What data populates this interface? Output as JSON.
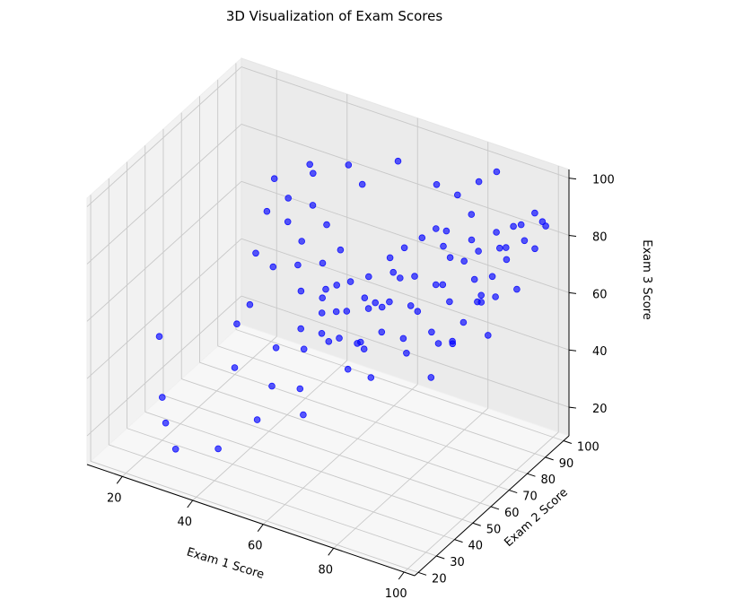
{
  "chart_data": {
    "type": "scatter",
    "title": "3D Visualization of Exam Scores",
    "xlabel": "Exam 1 Score",
    "ylabel": "Exam 2 Score",
    "zlabel": "Exam 3 Score",
    "x_ticks": [
      "20",
      "40",
      "60",
      "80",
      "100"
    ],
    "y_ticks": [
      "20",
      "30",
      "40",
      "50",
      "60",
      "70",
      "80",
      "90",
      "100"
    ],
    "z_ticks": [
      "20",
      "40",
      "60",
      "80",
      "100"
    ],
    "xlim": [
      10,
      103
    ],
    "ylim": [
      18,
      103
    ],
    "zlim": [
      10,
      103
    ],
    "grid": true,
    "marker_color": "#0000ff",
    "series": [
      {
        "points": [
          [
            14,
            50,
            38
          ],
          [
            20,
            40,
            25
          ],
          [
            22,
            38,
            18
          ],
          [
            30,
            28,
            18
          ],
          [
            32,
            65,
            48
          ],
          [
            35,
            52,
            50
          ],
          [
            38,
            45,
            40
          ],
          [
            40,
            32,
            20
          ],
          [
            42,
            60,
            40
          ],
          [
            46,
            50,
            34
          ],
          [
            48,
            62,
            48
          ],
          [
            48,
            38,
            30
          ],
          [
            50,
            70,
            55
          ],
          [
            52,
            74,
            58
          ],
          [
            52,
            56,
            46
          ],
          [
            55,
            48,
            38
          ],
          [
            56,
            66,
            55
          ],
          [
            58,
            80,
            60
          ],
          [
            58,
            58,
            50
          ],
          [
            59,
            42,
            34
          ],
          [
            60,
            76,
            52
          ],
          [
            62,
            70,
            60
          ],
          [
            62,
            84,
            66
          ],
          [
            63,
            64,
            48
          ],
          [
            64,
            88,
            68
          ],
          [
            65,
            55,
            45
          ],
          [
            66,
            78,
            66
          ],
          [
            67,
            60,
            50
          ],
          [
            68,
            72,
            60
          ],
          [
            68,
            90,
            72
          ],
          [
            69,
            66,
            62
          ],
          [
            70,
            82,
            64
          ],
          [
            71,
            56,
            44
          ],
          [
            72,
            76,
            58
          ],
          [
            73,
            92,
            70
          ],
          [
            74,
            68,
            52
          ],
          [
            75,
            84,
            62
          ],
          [
            76,
            72,
            60
          ],
          [
            77,
            88,
            70
          ],
          [
            78,
            62,
            52
          ],
          [
            79,
            80,
            66
          ],
          [
            80,
            94,
            74
          ],
          [
            81,
            70,
            56
          ],
          [
            82,
            86,
            72
          ],
          [
            83,
            76,
            64
          ],
          [
            84,
            90,
            74
          ],
          [
            85,
            66,
            56
          ],
          [
            86,
            96,
            78
          ],
          [
            87,
            82,
            70
          ],
          [
            88,
            74,
            60
          ],
          [
            89,
            92,
            76
          ],
          [
            90,
            86,
            70
          ],
          [
            91,
            78,
            66
          ],
          [
            92,
            98,
            82
          ],
          [
            93,
            88,
            76
          ],
          [
            94,
            80,
            68
          ],
          [
            95,
            94,
            80
          ],
          [
            96,
            72,
            60
          ],
          [
            97,
            100,
            84
          ],
          [
            98,
            84,
            70
          ],
          [
            99,
            92,
            80
          ],
          [
            100,
            96,
            86
          ],
          [
            86,
            60,
            48
          ],
          [
            88,
            68,
            56
          ],
          [
            90,
            64,
            60
          ],
          [
            92,
            76,
            70
          ],
          [
            94,
            70,
            72
          ],
          [
            96,
            86,
            90
          ],
          [
            98,
            78,
            88
          ],
          [
            100,
            90,
            94
          ],
          [
            78,
            84,
            82
          ],
          [
            80,
            98,
            92
          ],
          [
            82,
            90,
            86
          ],
          [
            84,
            100,
            96
          ],
          [
            72,
            60,
            58
          ],
          [
            74,
            86,
            80
          ],
          [
            76,
            94,
            88
          ],
          [
            70,
            74,
            68
          ],
          [
            66,
            60,
            52
          ],
          [
            64,
            72,
            58
          ],
          [
            62,
            56,
            54
          ],
          [
            60,
            64,
            58
          ],
          [
            58,
            70,
            64
          ],
          [
            56,
            58,
            52
          ],
          [
            54,
            62,
            56
          ],
          [
            52,
            68,
            60
          ],
          [
            50,
            80,
            66
          ],
          [
            48,
            74,
            64
          ],
          [
            46,
            66,
            58
          ],
          [
            44,
            84,
            70
          ],
          [
            42,
            72,
            62
          ],
          [
            40,
            78,
            66
          ],
          [
            38,
            88,
            72
          ],
          [
            36,
            70,
            60
          ],
          [
            34,
            82,
            68
          ],
          [
            30,
            90,
            70
          ],
          [
            28,
            76,
            58
          ],
          [
            26,
            86,
            66
          ],
          [
            24,
            94,
            72
          ],
          [
            32,
            98,
            78
          ],
          [
            44,
            96,
            84
          ],
          [
            56,
            100,
            88
          ],
          [
            68,
            98,
            86
          ],
          [
            36,
            92,
            80
          ],
          [
            50,
            92,
            82
          ]
        ]
      }
    ]
  }
}
